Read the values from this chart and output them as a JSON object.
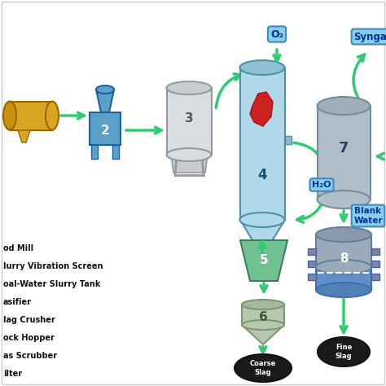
{
  "bg_color": "#ffffff",
  "arrow_color": "#2ecc71",
  "label_bg": "#87ceeb",
  "legend_items": [
    "od Mill",
    "lurry Vibration Screen",
    "oal-Water Slurry Tank",
    "asifier",
    "lag Crusher",
    "ock Hopper",
    "as Scrubber",
    "ilter"
  ],
  "o2_label": "O₂",
  "h2o_label": "H₂O",
  "syngas_label": "Synga",
  "blank_water_label": "Blank\nWater",
  "coarse_slag_label": "Coarse\nSlag",
  "fine_slag_label": "Fine\nSlag"
}
